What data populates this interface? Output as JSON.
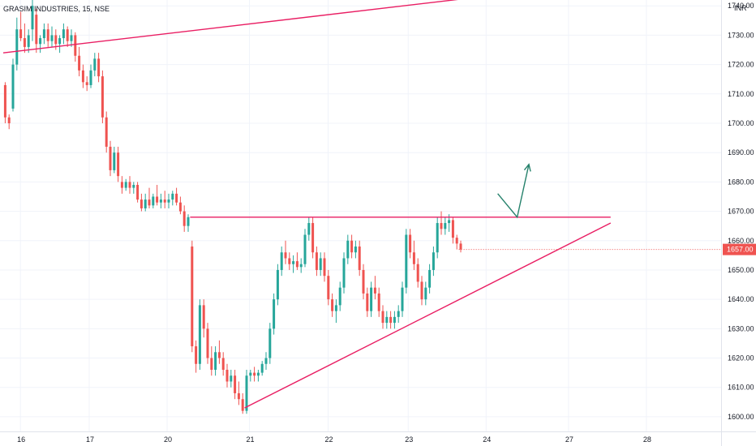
{
  "header": {
    "title": "GRASIM INDUSTRIES, 15, NSE"
  },
  "chart_data": {
    "type": "candlestick",
    "currency": "INR",
    "ylim": [
      1595,
      1742
    ],
    "yticks": [
      1600,
      1610,
      1620,
      1630,
      1640,
      1650,
      1660,
      1670,
      1680,
      1690,
      1700,
      1710,
      1720,
      1730,
      1740
    ],
    "x_ticks": [
      "16",
      "17",
      "20",
      "21",
      "22",
      "23",
      "24",
      "27",
      "28"
    ],
    "last_price": "1657.00",
    "colors": {
      "up": "#26a69a",
      "down": "#ef5350",
      "trendline": "#e91e63",
      "projection": "#26826c",
      "price_tag": "#ef5350"
    },
    "candles": [
      [
        1713,
        1714,
        1700,
        1702
      ],
      [
        1702,
        1703,
        1698,
        1700
      ],
      [
        1705,
        1722,
        1704,
        1720
      ],
      [
        1720,
        1736,
        1718,
        1732
      ],
      [
        1732,
        1738,
        1728,
        1729
      ],
      [
        1729,
        1734,
        1724,
        1726
      ],
      [
        1726,
        1732,
        1724,
        1730
      ],
      [
        1732,
        1742,
        1728,
        1740
      ],
      [
        1737,
        1739,
        1724,
        1727
      ],
      [
        1727,
        1730,
        1724,
        1729
      ],
      [
        1729,
        1734,
        1727,
        1732
      ],
      [
        1732,
        1734,
        1726,
        1728
      ],
      [
        1728,
        1733,
        1726,
        1730
      ],
      [
        1730,
        1732,
        1725,
        1727
      ],
      [
        1727,
        1730,
        1724,
        1729
      ],
      [
        1729,
        1734,
        1727,
        1732
      ],
      [
        1732,
        1733,
        1726,
        1728
      ],
      [
        1728,
        1732,
        1726,
        1730
      ],
      [
        1730,
        1731,
        1721,
        1723
      ],
      [
        1723,
        1726,
        1716,
        1718
      ],
      [
        1718,
        1720,
        1712,
        1714
      ],
      [
        1714,
        1716,
        1711,
        1713
      ],
      [
        1713,
        1720,
        1712,
        1718
      ],
      [
        1718,
        1724,
        1716,
        1722
      ],
      [
        1722,
        1724,
        1714,
        1716
      ],
      [
        1716,
        1718,
        1700,
        1702
      ],
      [
        1702,
        1704,
        1690,
        1692
      ],
      [
        1692,
        1694,
        1682,
        1684
      ],
      [
        1684,
        1692,
        1683,
        1690
      ],
      [
        1690,
        1692,
        1680,
        1682
      ],
      [
        1680,
        1682,
        1676,
        1678
      ],
      [
        1678,
        1681,
        1677,
        1680
      ],
      [
        1680,
        1682,
        1676,
        1678
      ],
      [
        1678,
        1680,
        1676,
        1679
      ],
      [
        1679,
        1680,
        1673,
        1674
      ],
      [
        1674,
        1676,
        1670,
        1671
      ],
      [
        1671,
        1676,
        1670,
        1674
      ],
      [
        1674,
        1678,
        1671,
        1672
      ],
      [
        1672,
        1676,
        1671,
        1675
      ],
      [
        1675,
        1679,
        1672,
        1673
      ],
      [
        1673,
        1676,
        1671,
        1674
      ],
      [
        1674,
        1677,
        1671,
        1673
      ],
      [
        1673,
        1676,
        1671,
        1674
      ],
      [
        1674,
        1677,
        1672,
        1676
      ],
      [
        1676,
        1678,
        1672,
        1673
      ],
      [
        1673,
        1675,
        1669,
        1670
      ],
      [
        1670,
        1672,
        1663,
        1665
      ],
      [
        1665,
        1669,
        1663,
        1668
      ],
      [
        1658,
        1660,
        1622,
        1624
      ],
      [
        1624,
        1626,
        1615,
        1618
      ],
      [
        1618,
        1640,
        1616,
        1638
      ],
      [
        1638,
        1640,
        1627,
        1630
      ],
      [
        1630,
        1632,
        1618,
        1620
      ],
      [
        1620,
        1624,
        1614,
        1616
      ],
      [
        1616,
        1624,
        1614,
        1622
      ],
      [
        1622,
        1626,
        1618,
        1620
      ],
      [
        1620,
        1622,
        1614,
        1616
      ],
      [
        1616,
        1618,
        1610,
        1612
      ],
      [
        1612,
        1616,
        1610,
        1614
      ],
      [
        1614,
        1616,
        1606,
        1608
      ],
      [
        1608,
        1612,
        1604,
        1606
      ],
      [
        1606,
        1608,
        1601,
        1602
      ],
      [
        1602,
        1616,
        1601,
        1614
      ],
      [
        1614,
        1616,
        1612,
        1615
      ],
      [
        1615,
        1617,
        1612,
        1614
      ],
      [
        1614,
        1616,
        1612,
        1615
      ],
      [
        1615,
        1619,
        1614,
        1618
      ],
      [
        1618,
        1622,
        1616,
        1620
      ],
      [
        1620,
        1632,
        1618,
        1630
      ],
      [
        1630,
        1642,
        1628,
        1640
      ],
      [
        1640,
        1652,
        1638,
        1650
      ],
      [
        1650,
        1658,
        1648,
        1656
      ],
      [
        1656,
        1660,
        1652,
        1654
      ],
      [
        1654,
        1656,
        1650,
        1652
      ],
      [
        1652,
        1655,
        1649,
        1653
      ],
      [
        1653,
        1656,
        1650,
        1651
      ],
      [
        1651,
        1654,
        1649,
        1652
      ],
      [
        1652,
        1664,
        1651,
        1662
      ],
      [
        1662,
        1668,
        1660,
        1666
      ],
      [
        1666,
        1668,
        1654,
        1656
      ],
      [
        1656,
        1658,
        1648,
        1650
      ],
      [
        1650,
        1656,
        1648,
        1654
      ],
      [
        1654,
        1656,
        1646,
        1648
      ],
      [
        1648,
        1650,
        1638,
        1640
      ],
      [
        1640,
        1642,
        1634,
        1636
      ],
      [
        1636,
        1640,
        1632,
        1638
      ],
      [
        1638,
        1646,
        1636,
        1644
      ],
      [
        1644,
        1656,
        1642,
        1654
      ],
      [
        1654,
        1662,
        1652,
        1660
      ],
      [
        1660,
        1662,
        1654,
        1656
      ],
      [
        1656,
        1660,
        1654,
        1658
      ],
      [
        1658,
        1660,
        1648,
        1650
      ],
      [
        1650,
        1652,
        1640,
        1642
      ],
      [
        1642,
        1644,
        1634,
        1636
      ],
      [
        1636,
        1646,
        1634,
        1644
      ],
      [
        1644,
        1648,
        1640,
        1642
      ],
      [
        1642,
        1644,
        1634,
        1636
      ],
      [
        1636,
        1638,
        1630,
        1632
      ],
      [
        1632,
        1636,
        1630,
        1634
      ],
      [
        1634,
        1636,
        1630,
        1632
      ],
      [
        1632,
        1636,
        1630,
        1634
      ],
      [
        1634,
        1638,
        1632,
        1636
      ],
      [
        1636,
        1646,
        1634,
        1644
      ],
      [
        1644,
        1664,
        1642,
        1662
      ],
      [
        1662,
        1664,
        1654,
        1656
      ],
      [
        1656,
        1660,
        1650,
        1652
      ],
      [
        1652,
        1654,
        1644,
        1646
      ],
      [
        1646,
        1648,
        1638,
        1640
      ],
      [
        1640,
        1646,
        1638,
        1644
      ],
      [
        1644,
        1652,
        1642,
        1650
      ],
      [
        1650,
        1658,
        1648,
        1656
      ],
      [
        1656,
        1668,
        1654,
        1666
      ],
      [
        1666,
        1670,
        1662,
        1664
      ],
      [
        1664,
        1668,
        1662,
        1666
      ],
      [
        1666,
        1669,
        1663,
        1667
      ],
      [
        1667,
        1668,
        1659,
        1661
      ],
      [
        1661,
        1662,
        1657,
        1659
      ],
      [
        1659,
        1660,
        1656,
        1657
      ]
    ],
    "trendlines": [
      {
        "name": "upper-channel",
        "from": {
          "bar": 0,
          "price": 1724
        },
        "to": {
          "bar": 122,
          "price": 1743
        }
      },
      {
        "name": "resistance",
        "from": {
          "bar": 48,
          "price": 1668
        },
        "to": {
          "bar": 156,
          "price": 1668
        }
      },
      {
        "name": "rising-support",
        "from": {
          "bar": 62,
          "price": 1603
        },
        "to": {
          "bar": 156,
          "price": 1666
        }
      }
    ],
    "projection": {
      "points": [
        {
          "bar": 127,
          "price": 1676
        },
        {
          "bar": 132,
          "price": 1668
        },
        {
          "bar": 135,
          "price": 1686
        }
      ]
    }
  }
}
